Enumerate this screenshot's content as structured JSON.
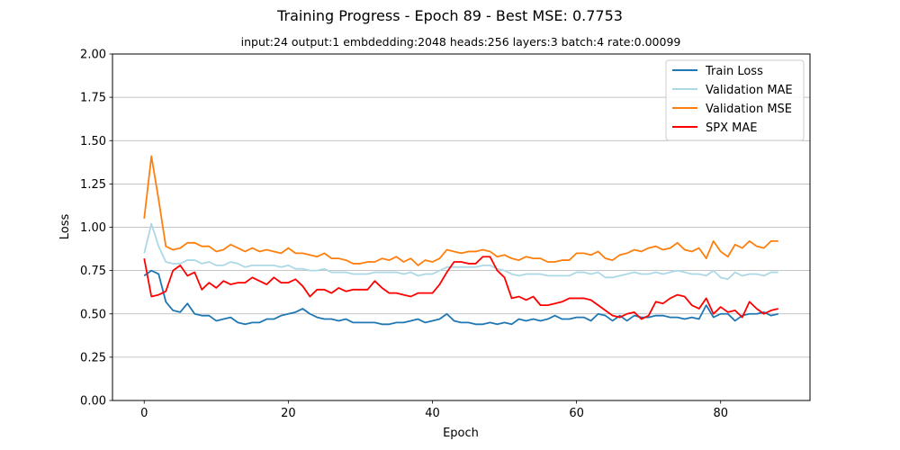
{
  "chart_data": {
    "type": "line",
    "title": "Training Progress - Epoch 89 - Best MSE: 0.7753",
    "subtitle": "input:24 output:1 embdedding:2048 heads:256 layers:3 batch:4 rate:0.00099",
    "xlabel": "Epoch",
    "ylabel": "Loss",
    "xlim": [
      -4.4,
      92.4
    ],
    "ylim": [
      0,
      2.0
    ],
    "xticks": [
      0,
      20,
      40,
      60,
      80
    ],
    "yticks": [
      "0.00",
      "0.25",
      "0.50",
      "0.75",
      "1.00",
      "1.25",
      "1.50",
      "1.75",
      "2.00"
    ],
    "grid": "horizontal",
    "legend_position": "top-right",
    "x": [
      0,
      1,
      2,
      3,
      4,
      5,
      6,
      7,
      8,
      9,
      10,
      11,
      12,
      13,
      14,
      15,
      16,
      17,
      18,
      19,
      20,
      21,
      22,
      23,
      24,
      25,
      26,
      27,
      28,
      29,
      30,
      31,
      32,
      33,
      34,
      35,
      36,
      37,
      38,
      39,
      40,
      41,
      42,
      43,
      44,
      45,
      46,
      47,
      48,
      49,
      50,
      51,
      52,
      53,
      54,
      55,
      56,
      57,
      58,
      59,
      60,
      61,
      62,
      63,
      64,
      65,
      66,
      67,
      68,
      69,
      70,
      71,
      72,
      73,
      74,
      75,
      76,
      77,
      78,
      79,
      80,
      81,
      82,
      83,
      84,
      85,
      86,
      87,
      88
    ],
    "series": [
      {
        "name": "Train Loss",
        "color": "#1f77b4",
        "values": [
          0.72,
          0.75,
          0.73,
          0.57,
          0.52,
          0.51,
          0.56,
          0.5,
          0.49,
          0.49,
          0.46,
          0.47,
          0.48,
          0.45,
          0.44,
          0.45,
          0.45,
          0.47,
          0.47,
          0.49,
          0.5,
          0.51,
          0.53,
          0.5,
          0.48,
          0.47,
          0.47,
          0.46,
          0.47,
          0.45,
          0.45,
          0.45,
          0.45,
          0.44,
          0.44,
          0.45,
          0.45,
          0.46,
          0.47,
          0.45,
          0.46,
          0.47,
          0.5,
          0.46,
          0.45,
          0.45,
          0.44,
          0.44,
          0.45,
          0.44,
          0.45,
          0.44,
          0.47,
          0.46,
          0.47,
          0.46,
          0.47,
          0.49,
          0.47,
          0.47,
          0.48,
          0.48,
          0.46,
          0.5,
          0.49,
          0.46,
          0.49,
          0.46,
          0.49,
          0.48,
          0.48,
          0.49,
          0.49,
          0.48,
          0.48,
          0.47,
          0.48,
          0.47,
          0.55,
          0.48,
          0.5,
          0.5,
          0.46,
          0.49,
          0.5,
          0.5,
          0.51,
          0.49,
          0.5
        ]
      },
      {
        "name": "Validation MAE",
        "color": "#add8e6",
        "values": [
          0.85,
          1.02,
          0.89,
          0.8,
          0.79,
          0.79,
          0.81,
          0.81,
          0.79,
          0.8,
          0.78,
          0.78,
          0.8,
          0.79,
          0.77,
          0.78,
          0.78,
          0.78,
          0.78,
          0.77,
          0.78,
          0.76,
          0.76,
          0.75,
          0.75,
          0.76,
          0.74,
          0.74,
          0.74,
          0.73,
          0.73,
          0.73,
          0.74,
          0.74,
          0.74,
          0.74,
          0.73,
          0.74,
          0.72,
          0.73,
          0.73,
          0.75,
          0.77,
          0.77,
          0.77,
          0.77,
          0.77,
          0.78,
          0.78,
          0.76,
          0.75,
          0.73,
          0.72,
          0.73,
          0.73,
          0.73,
          0.72,
          0.72,
          0.72,
          0.72,
          0.74,
          0.74,
          0.73,
          0.74,
          0.71,
          0.71,
          0.72,
          0.73,
          0.74,
          0.73,
          0.73,
          0.74,
          0.73,
          0.74,
          0.75,
          0.74,
          0.73,
          0.73,
          0.72,
          0.75,
          0.71,
          0.7,
          0.74,
          0.72,
          0.73,
          0.73,
          0.72,
          0.74,
          0.74
        ]
      },
      {
        "name": "Validation MSE",
        "color": "#ff7f0e",
        "values": [
          1.05,
          1.41,
          1.16,
          0.89,
          0.87,
          0.88,
          0.91,
          0.91,
          0.89,
          0.89,
          0.86,
          0.87,
          0.9,
          0.88,
          0.86,
          0.88,
          0.86,
          0.87,
          0.86,
          0.85,
          0.88,
          0.85,
          0.85,
          0.84,
          0.83,
          0.85,
          0.82,
          0.82,
          0.81,
          0.79,
          0.79,
          0.8,
          0.8,
          0.82,
          0.81,
          0.83,
          0.8,
          0.82,
          0.78,
          0.81,
          0.8,
          0.82,
          0.87,
          0.86,
          0.85,
          0.86,
          0.86,
          0.87,
          0.86,
          0.83,
          0.84,
          0.82,
          0.81,
          0.83,
          0.82,
          0.82,
          0.8,
          0.8,
          0.81,
          0.81,
          0.85,
          0.85,
          0.84,
          0.86,
          0.82,
          0.81,
          0.84,
          0.85,
          0.87,
          0.86,
          0.88,
          0.89,
          0.87,
          0.88,
          0.91,
          0.87,
          0.86,
          0.88,
          0.82,
          0.92,
          0.86,
          0.83,
          0.9,
          0.88,
          0.92,
          0.89,
          0.88,
          0.92,
          0.92
        ]
      },
      {
        "name": "SPX MAE",
        "color": "#ff0000",
        "values": [
          0.82,
          0.6,
          0.61,
          0.63,
          0.75,
          0.78,
          0.72,
          0.74,
          0.64,
          0.68,
          0.65,
          0.69,
          0.67,
          0.68,
          0.68,
          0.71,
          0.69,
          0.67,
          0.71,
          0.68,
          0.68,
          0.7,
          0.66,
          0.6,
          0.64,
          0.64,
          0.62,
          0.65,
          0.63,
          0.64,
          0.64,
          0.64,
          0.69,
          0.65,
          0.62,
          0.62,
          0.61,
          0.6,
          0.62,
          0.62,
          0.62,
          0.67,
          0.74,
          0.8,
          0.8,
          0.79,
          0.79,
          0.83,
          0.83,
          0.75,
          0.71,
          0.59,
          0.6,
          0.58,
          0.6,
          0.55,
          0.55,
          0.56,
          0.57,
          0.59,
          0.59,
          0.59,
          0.58,
          0.55,
          0.52,
          0.49,
          0.48,
          0.5,
          0.51,
          0.47,
          0.49,
          0.57,
          0.56,
          0.59,
          0.61,
          0.6,
          0.55,
          0.53,
          0.59,
          0.5,
          0.54,
          0.51,
          0.52,
          0.48,
          0.57,
          0.53,
          0.5,
          0.52,
          0.53
        ]
      }
    ]
  }
}
